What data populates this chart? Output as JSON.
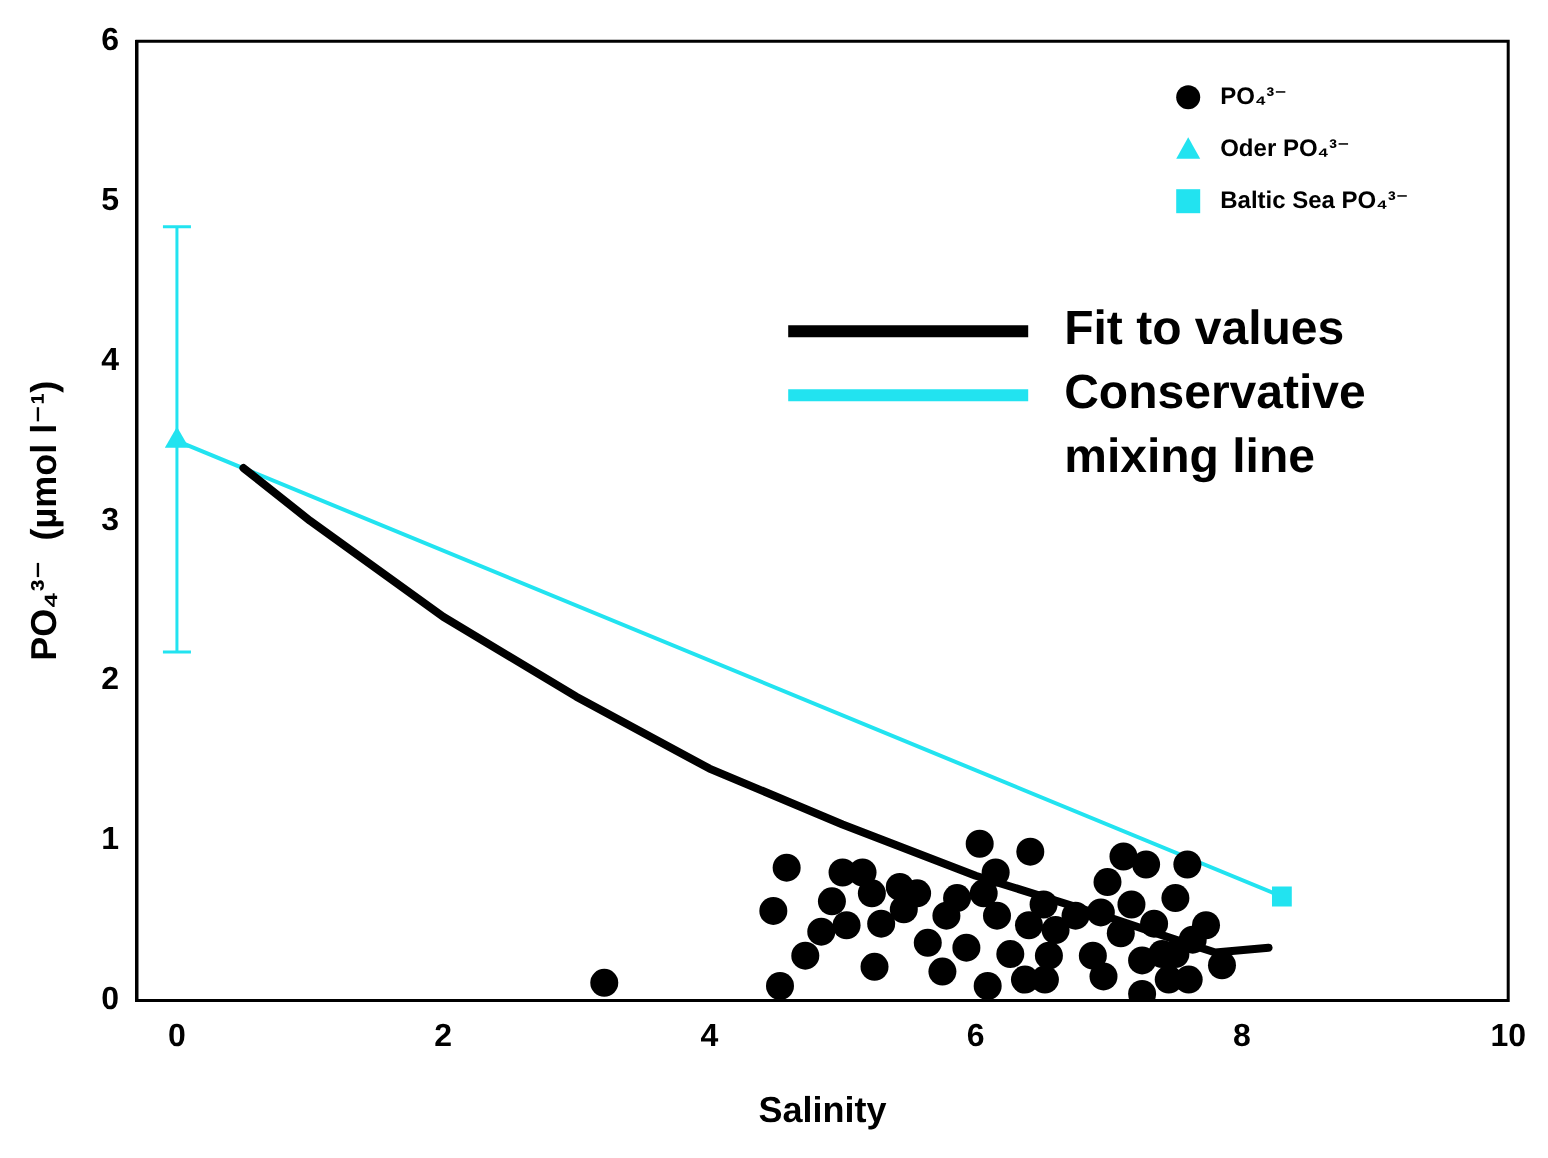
{
  "chart_data": {
    "type": "scatter",
    "xlabel": "Salinity",
    "ylabel": "PO₄³⁻  (µmol l⁻¹)",
    "xlim": [
      -0.3,
      10
    ],
    "ylim": [
      0,
      6
    ],
    "xticks": [
      0,
      2,
      4,
      6,
      8,
      10
    ],
    "yticks": [
      0,
      1,
      2,
      3,
      4,
      5,
      6
    ],
    "grid": false,
    "legend": "top right",
    "series": [
      {
        "name": "PO₄³⁻",
        "marker": "circle",
        "color": "#000000",
        "x": [
          3.21,
          4.53,
          4.48,
          4.58,
          4.72,
          4.84,
          4.92,
          5.03,
          5.0,
          5.15,
          5.22,
          5.24,
          5.29,
          5.43,
          5.46,
          5.64,
          5.56,
          5.75,
          5.78,
          5.86,
          5.93,
          6.03,
          6.06,
          6.15,
          6.09,
          6.16,
          6.26,
          6.41,
          6.4,
          6.37,
          6.51,
          6.52,
          6.6,
          6.55,
          6.75,
          6.88,
          6.94,
          6.99,
          7.09,
          7.11,
          7.17,
          7.28,
          6.96,
          7.25,
          7.25,
          7.34,
          7.45,
          7.5,
          7.59,
          7.6,
          7.63,
          7.73,
          7.85,
          7.4,
          7.5
        ],
        "values": [
          0.11,
          0.09,
          0.56,
          0.83,
          0.28,
          0.43,
          0.62,
          0.47,
          0.8,
          0.8,
          0.67,
          0.21,
          0.48,
          0.71,
          0.57,
          0.36,
          0.67,
          0.18,
          0.53,
          0.64,
          0.33,
          0.98,
          0.67,
          0.8,
          0.09,
          0.53,
          0.29,
          0.93,
          0.47,
          0.13,
          0.6,
          0.13,
          0.44,
          0.28,
          0.53,
          0.28,
          0.55,
          0.74,
          0.42,
          0.9,
          0.6,
          0.85,
          0.15,
          0.04,
          0.25,
          0.48,
          0.13,
          0.64,
          0.85,
          0.13,
          0.38,
          0.47,
          0.22,
          0.29,
          0.29
        ]
      },
      {
        "name": "Oder PO₄³⁻",
        "marker": "triangle",
        "color": "#22e3f0",
        "x": [
          0
        ],
        "values": [
          3.5
        ],
        "errors": [
          [
            2.18,
            4.84
          ]
        ]
      },
      {
        "name": "Baltic Sea PO₄³⁻",
        "marker": "square",
        "color": "#22e3f0",
        "x": [
          8.3
        ],
        "values": [
          0.65
        ]
      },
      {
        "name": "Fit to values",
        "type": "line",
        "marker": "none",
        "color": "#000000",
        "x": [
          0.5,
          1,
          2,
          3,
          4,
          5,
          6,
          7,
          7.5,
          7.8,
          8.2
        ],
        "values": [
          3.33,
          3.0,
          2.4,
          1.9,
          1.45,
          1.1,
          0.78,
          0.52,
          0.38,
          0.3,
          0.33
        ]
      },
      {
        "name": "Conservative mixing line",
        "type": "line",
        "marker": "none",
        "color": "#22e3f0",
        "x": [
          0,
          8.3
        ],
        "values": [
          3.5,
          0.65
        ]
      }
    ]
  }
}
